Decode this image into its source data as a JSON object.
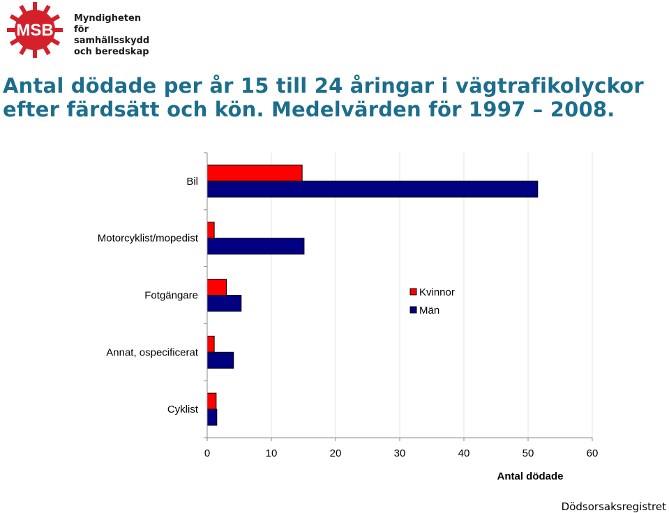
{
  "logo": {
    "mark": "MSB",
    "line1": "Myndigheten för",
    "line2": "samhällsskydd",
    "line3": "och beredskap"
  },
  "title": {
    "line1": "Antal dödade per år 15 till 24 åringar i vägtrafikolyckor",
    "line2": "efter färdsätt och kön. Medelvärden för 1997 – 2008."
  },
  "source": "Dödsorsaksregistret",
  "chart_data": {
    "type": "bar",
    "orientation": "horizontal",
    "categories": [
      "Bil",
      "Motorcyklist/mopedist",
      "Fotgängare",
      "Annat, ospecificerat",
      "Cyklist"
    ],
    "series": [
      {
        "name": "Kvinnor",
        "color": "#ff0000",
        "values": [
          14.8,
          1.1,
          3.0,
          1.1,
          1.4
        ]
      },
      {
        "name": "Män",
        "color": "#000080",
        "values": [
          51.5,
          15.1,
          5.3,
          4.1,
          1.5
        ]
      }
    ],
    "xlabel": "Antal dödade",
    "xlim": [
      0,
      60
    ],
    "xticks": [
      "0",
      "10",
      "20",
      "30",
      "40",
      "50",
      "60"
    ],
    "grid": true,
    "legend": "inside-right"
  }
}
